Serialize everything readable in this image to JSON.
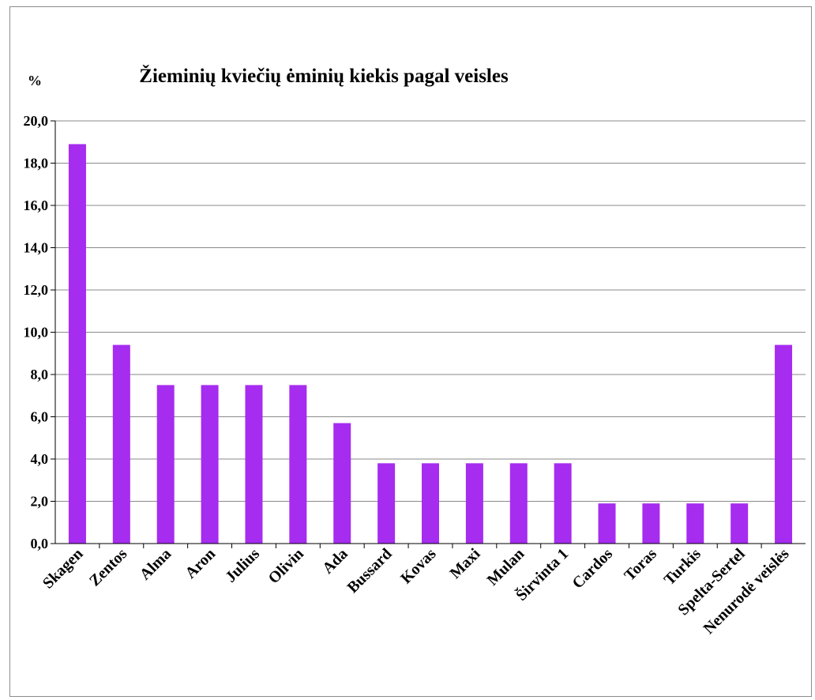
{
  "chart_data": {
    "type": "bar",
    "title": "Žieminių kviečių ėminių kiekis pagal veisles",
    "ylabel": "%",
    "xlabel": "",
    "categories": [
      "Skagen",
      "Zentos",
      "Alma",
      "Aron",
      "Julius",
      "Olivin",
      "Ada",
      "Bussard",
      "Kovas",
      "Maxi",
      "Mulan",
      "Širvinta 1",
      "Cardos",
      "Toras",
      "Turkis",
      "Spelta-Sertel",
      "Nenurodė veislės"
    ],
    "values": [
      18.9,
      9.4,
      7.5,
      7.5,
      7.5,
      7.5,
      5.7,
      3.8,
      3.8,
      3.8,
      3.8,
      3.8,
      1.9,
      1.9,
      1.9,
      1.9,
      9.4
    ],
    "yticks": [
      "0,0",
      "2,0",
      "4,0",
      "6,0",
      "8,0",
      "10,0",
      "12,0",
      "14,0",
      "16,0",
      "18,0",
      "20,0"
    ],
    "ylim": [
      0,
      20
    ],
    "grid": true,
    "legend": "none",
    "bar_color": "#a62cf0"
  }
}
